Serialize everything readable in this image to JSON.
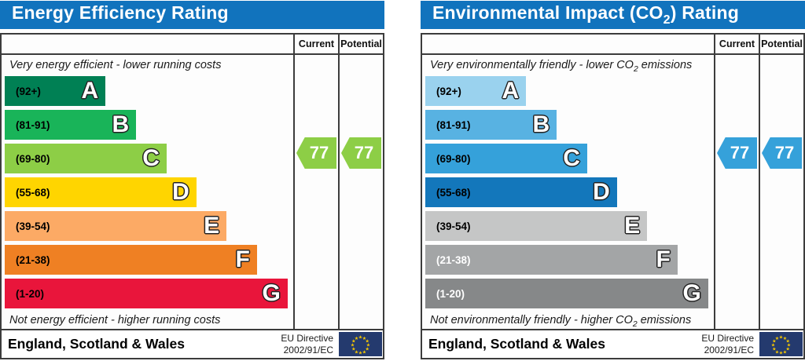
{
  "page": {
    "background": "#ffffff",
    "border_color": "#3c3c3c"
  },
  "charts": [
    {
      "title_pre": "Energy Efficiency Rating",
      "title_sub": "",
      "title_post": "",
      "header_color": "#1173bd",
      "col_current": "Current",
      "col_potential": "Potential",
      "top_caption_pre": "Very energy efficient - lower running costs",
      "top_caption_sub": "",
      "top_caption_post": "",
      "bottom_caption_pre": "Not energy efficient - higher running costs",
      "bottom_caption_sub": "",
      "bottom_caption_post": "",
      "bands": [
        {
          "range": "(92+)",
          "letter": "A",
          "color": "#008054",
          "width_pct": 35.1,
          "label_color": "#000000"
        },
        {
          "range": "(81-91)",
          "letter": "B",
          "color": "#19b459",
          "width_pct": 45.8,
          "label_color": "#000000"
        },
        {
          "range": "(69-80)",
          "letter": "C",
          "color": "#8dce46",
          "width_pct": 56.4,
          "label_color": "#000000"
        },
        {
          "range": "(55-68)",
          "letter": "D",
          "color": "#ffd500",
          "width_pct": 66.8,
          "label_color": "#000000"
        },
        {
          "range": "(39-54)",
          "letter": "E",
          "color": "#fcaa65",
          "width_pct": 77.3,
          "label_color": "#000000"
        },
        {
          "range": "(21-38)",
          "letter": "F",
          "color": "#ef8023",
          "width_pct": 87.9,
          "label_color": "#000000"
        },
        {
          "range": "(1-20)",
          "letter": "G",
          "color": "#e9153b",
          "width_pct": 98.6,
          "label_color": "#000000"
        }
      ],
      "current_value": "77",
      "potential_value": "77",
      "arrow_color": "#8dce46",
      "footer_region": "England, Scotland & Wales",
      "directive_line1": "EU Directive",
      "directive_line2": "2002/91/EC",
      "eu_flag": {
        "background": "#243a6e",
        "star_color": "#f8ca00"
      }
    },
    {
      "title_pre": "Environmental Impact (CO",
      "title_sub": "2",
      "title_post": ") Rating",
      "header_color": "#1173bd",
      "col_current": "Current",
      "col_potential": "Potential",
      "top_caption_pre": "Very environmentally friendly - lower CO",
      "top_caption_sub": "2",
      "top_caption_post": " emissions",
      "bottom_caption_pre": "Not environmentally friendly - higher CO",
      "bottom_caption_sub": "2",
      "bottom_caption_post": " emissions",
      "bands": [
        {
          "range": "(92+)",
          "letter": "A",
          "color": "#9ad2ee",
          "width_pct": 35.1,
          "label_color": "#000000"
        },
        {
          "range": "(81-91)",
          "letter": "B",
          "color": "#58b2e2",
          "width_pct": 45.8,
          "label_color": "#000000"
        },
        {
          "range": "(69-80)",
          "letter": "C",
          "color": "#35a1da",
          "width_pct": 56.4,
          "label_color": "#000000"
        },
        {
          "range": "(55-68)",
          "letter": "D",
          "color": "#1377bb",
          "width_pct": 66.8,
          "label_color": "#000000"
        },
        {
          "range": "(39-54)",
          "letter": "E",
          "color": "#c5c6c6",
          "width_pct": 77.3,
          "label_color": "#000000"
        },
        {
          "range": "(21-38)",
          "letter": "F",
          "color": "#a3a5a6",
          "width_pct": 87.9,
          "label_color": "#ffffff"
        },
        {
          "range": "(1-20)",
          "letter": "G",
          "color": "#868889",
          "width_pct": 98.6,
          "label_color": "#ffffff"
        }
      ],
      "current_value": "77",
      "potential_value": "77",
      "arrow_color": "#35a1da",
      "footer_region": "England, Scotland & Wales",
      "directive_line1": "EU Directive",
      "directive_line2": "2002/91/EC",
      "eu_flag": {
        "background": "#243a6e",
        "star_color": "#f8ca00"
      }
    }
  ],
  "chart_data": [
    {
      "type": "bar",
      "title": "Energy Efficiency Rating",
      "orientation": "horizontal",
      "categories": [
        "A (92+)",
        "B (81-91)",
        "C (69-80)",
        "D (55-68)",
        "E (39-54)",
        "F (21-38)",
        "G (1-20)"
      ],
      "values": [
        35.1,
        45.8,
        56.4,
        66.8,
        77.3,
        87.9,
        98.6
      ],
      "ylabel": "",
      "xlabel": "",
      "value_note": "bar lengths are fixed EPC band widths (% of plot width)",
      "current": 77,
      "potential": 77,
      "current_band": "C",
      "potential_band": "C",
      "annotation_top": "Very energy efficient - lower running costs",
      "annotation_bottom": "Not energy efficient - higher running costs",
      "legend": [
        "Current",
        "Potential"
      ]
    },
    {
      "type": "bar",
      "title": "Environmental Impact (CO2) Rating",
      "orientation": "horizontal",
      "categories": [
        "A (92+)",
        "B (81-91)",
        "C (69-80)",
        "D (55-68)",
        "E (39-54)",
        "F (21-38)",
        "G (1-20)"
      ],
      "values": [
        35.1,
        45.8,
        56.4,
        66.8,
        77.3,
        87.9,
        98.6
      ],
      "ylabel": "",
      "xlabel": "",
      "value_note": "bar lengths are fixed EPC band widths (% of plot width)",
      "current": 77,
      "potential": 77,
      "current_band": "C",
      "potential_band": "C",
      "annotation_top": "Very environmentally friendly - lower CO2 emissions",
      "annotation_bottom": "Not environmentally friendly - higher CO2 emissions",
      "legend": [
        "Current",
        "Potential"
      ]
    }
  ]
}
